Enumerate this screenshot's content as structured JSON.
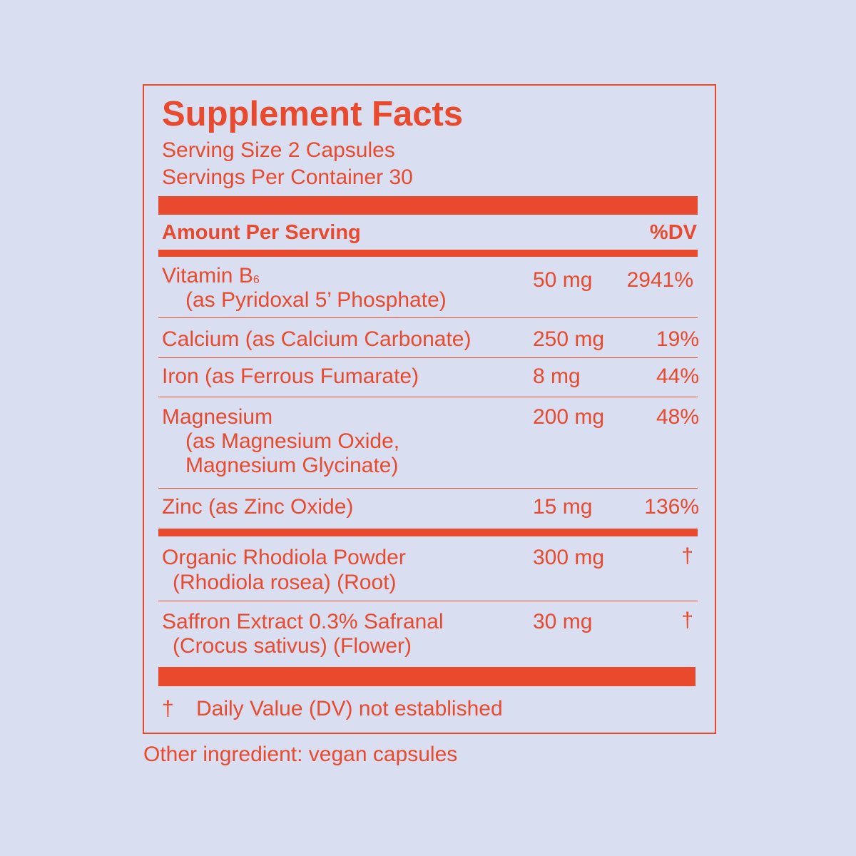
{
  "label": {
    "title": "Supplement Facts",
    "serving_size": "Serving Size 2 Capsules",
    "servings_per_container": "Servings Per Container 30",
    "header_left": "Amount Per Serving",
    "header_right": "%DV"
  },
  "nutrients": [
    {
      "name": "Vitamin B",
      "subscript": "6",
      "sub": "(as Pyridoxal 5’ Phosphate)",
      "amount": "50 mg",
      "dv": "2941%"
    },
    {
      "name": "Calcium (as Calcium Carbonate)",
      "amount": "250 mg",
      "dv": "19%"
    },
    {
      "name": "Iron (as Ferrous Fumarate)",
      "amount": "8 mg",
      "dv": "44%"
    },
    {
      "name": "Magnesium",
      "sub": "(as Magnesium Oxide,",
      "sub2": "Magnesium Glycinate)",
      "amount": "200 mg",
      "dv": "48%"
    },
    {
      "name": "Zinc (as Zinc Oxide)",
      "amount": "15 mg",
      "dv": "136%"
    }
  ],
  "botanicals": [
    {
      "name": "Organic Rhodiola Powder",
      "sub": "(Rhodiola rosea) (Root)",
      "amount": "300 mg",
      "dv": "†"
    },
    {
      "name": "Saffron Extract 0.3% Safranal",
      "sub": "(Crocus sativus) (Flower)",
      "amount": "30 mg",
      "dv": "†"
    }
  ],
  "footnote": {
    "symbol": "†",
    "text": "Daily Value (DV) not established"
  },
  "other_ingredients": "Other ingredient: vegan capsules",
  "colors": {
    "background": "#d9def1",
    "accent": "#e94a2e"
  }
}
